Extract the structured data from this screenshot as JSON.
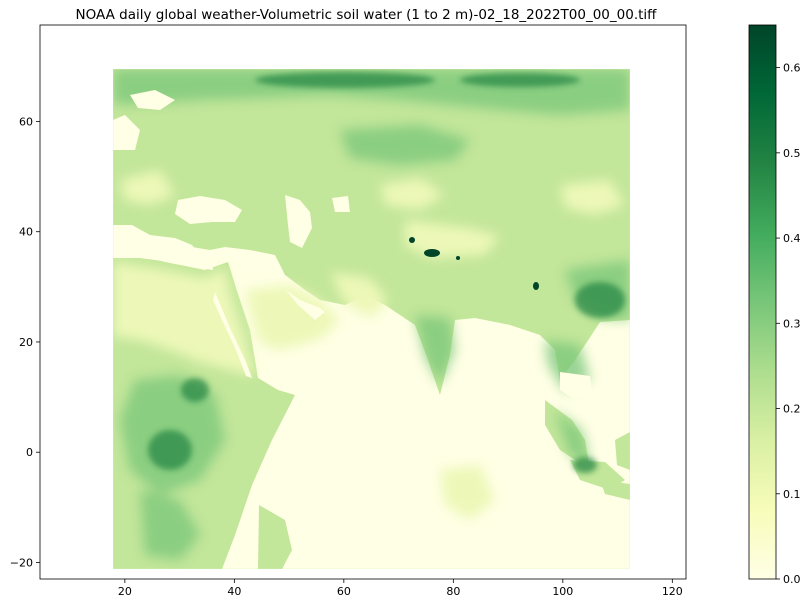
{
  "title": "NOAA daily global weather-Volumetric soil water (1 to 2 m)-02_18_2022T00_00_00.tiff",
  "map": {
    "x_ticks": [
      "20",
      "40",
      "60",
      "80",
      "100",
      "120"
    ],
    "y_ticks": [
      "60",
      "40",
      "20",
      "0",
      "−20"
    ],
    "xlim": [
      4.5,
      122.5
    ],
    "ylim": [
      -23,
      77.5
    ],
    "extent": {
      "lon_min": 18,
      "lon_max": 112,
      "lat_min": -21,
      "lat_max": 70
    }
  },
  "colorbar": {
    "colormap": "YlGn",
    "ticks": [
      "0.0",
      "0.1",
      "0.2",
      "0.3",
      "0.4",
      "0.5",
      "0.6"
    ],
    "range": [
      0.0,
      0.65
    ],
    "colors": [
      "#ffffe5",
      "#f7fcb9",
      "#d9f0a3",
      "#addd8e",
      "#78c679",
      "#41ab5d",
      "#238443",
      "#006837",
      "#004529"
    ]
  }
}
